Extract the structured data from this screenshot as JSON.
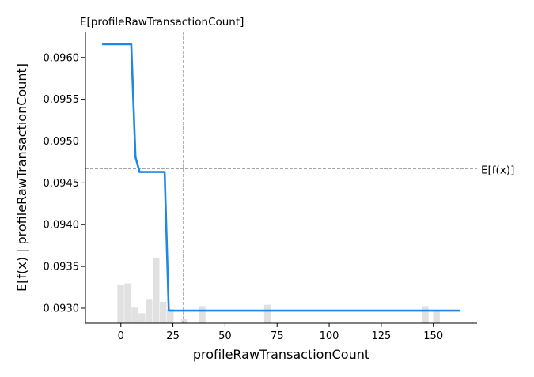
{
  "chart_data": {
    "type": "line",
    "xlabel": "profileRawTransactionCount",
    "ylabel": "E[f(x) | profileRawTransactionCount]",
    "xlim": [
      -17,
      171
    ],
    "ylim": [
      0.09282,
      0.09631
    ],
    "x_ticks": [
      0,
      25,
      50,
      75,
      100,
      125,
      150
    ],
    "y_ticks": [
      0.093,
      0.0935,
      0.094,
      0.0945,
      0.095,
      0.0955,
      0.096
    ],
    "x_tick_labels": [
      "0",
      "25",
      "50",
      "75",
      "100",
      "125",
      "150"
    ],
    "y_tick_labels": [
      "0.0930",
      "0.0935",
      "0.0940",
      "0.0945",
      "0.0950",
      "0.0955",
      "0.0960"
    ],
    "reference_lines": {
      "expected_x": {
        "label": "E[profileRawTransactionCount]",
        "value": 30
      },
      "expected_y": {
        "label": "E[f(x)]",
        "value": 0.09467
      }
    },
    "series": [
      {
        "x": [
          -9,
          5,
          7,
          9,
          21,
          23,
          163
        ],
        "y": [
          0.09616,
          0.09616,
          0.09481,
          0.09463,
          0.09463,
          0.09297,
          0.09297
        ]
      }
    ],
    "histogram": {
      "bin_width": 3.4,
      "bins": [
        {
          "x": 0,
          "rel": 0.27
        },
        {
          "x": 3.4,
          "rel": 0.28
        },
        {
          "x": 6.8,
          "rel": 0.11
        },
        {
          "x": 10.2,
          "rel": 0.07
        },
        {
          "x": 13.6,
          "rel": 0.17
        },
        {
          "x": 17,
          "rel": 0.46
        },
        {
          "x": 20.4,
          "rel": 0.15
        },
        {
          "x": 23.8,
          "rel": 0.1
        },
        {
          "x": 30.6,
          "rel": 0.03
        },
        {
          "x": 39.1,
          "rel": 0.12
        },
        {
          "x": 70.5,
          "rel": 0.13
        },
        {
          "x": 146.2,
          "rel": 0.12
        },
        {
          "x": 151.6,
          "rel": 0.09
        }
      ]
    },
    "colors": {
      "line": "#1e88e5",
      "histogram": "#e1e1e1",
      "reference": "#999999",
      "axis": "#000000"
    },
    "grid": false,
    "legend": "none"
  }
}
